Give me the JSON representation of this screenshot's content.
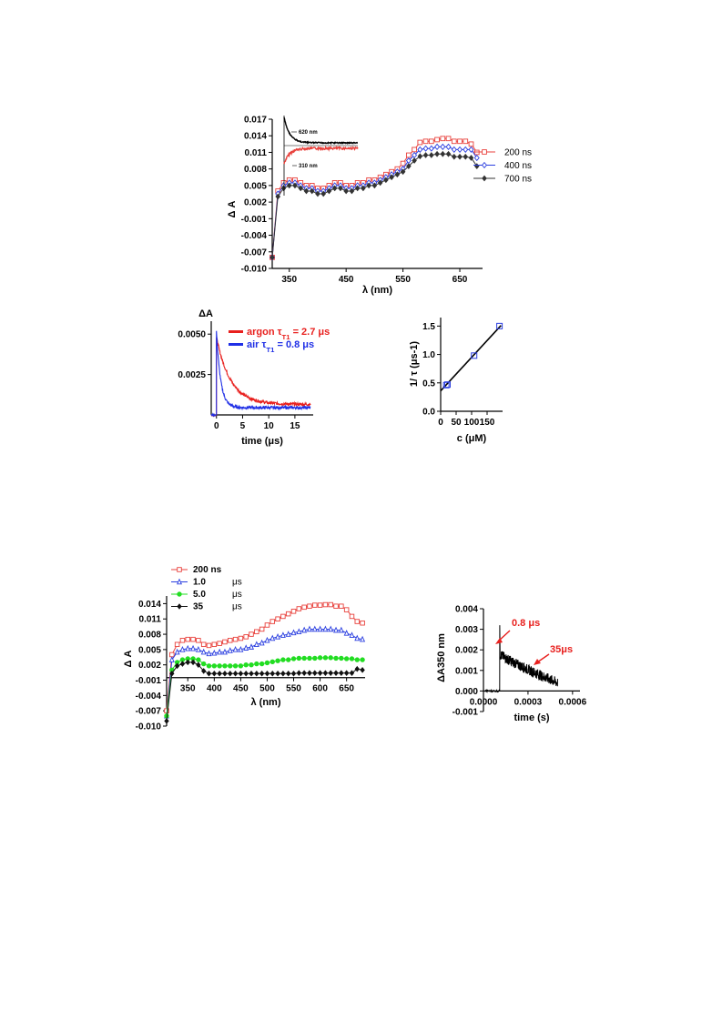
{
  "chart_data": [
    {
      "id": "c1",
      "type": "line",
      "xlabel": "λ (nm)",
      "ylabel": "Δ A",
      "xlim": [
        320,
        690
      ],
      "ylim": [
        -0.01,
        0.017
      ],
      "xticks": [
        350,
        450,
        550,
        650
      ],
      "yticks": [
        -0.01,
        -0.007,
        -0.004,
        -0.001,
        0.002,
        0.005,
        0.008,
        0.011,
        0.014,
        0.017
      ],
      "ytick_labels": [
        "-0.010",
        "-0.007",
        "-0.004",
        "-0.001",
        "0.002",
        "0.005",
        "0.008",
        "0.011",
        "0.014",
        "0.017"
      ],
      "legend_position": "right",
      "x": [
        320,
        330,
        340,
        350,
        360,
        370,
        380,
        390,
        400,
        410,
        420,
        430,
        440,
        450,
        460,
        470,
        480,
        490,
        500,
        510,
        520,
        530,
        540,
        550,
        560,
        570,
        580,
        590,
        600,
        610,
        620,
        630,
        640,
        650,
        660,
        670,
        680
      ],
      "series": [
        {
          "name": "200 ns",
          "color": "#e8413c",
          "marker": "square",
          "values": [
            -0.008,
            0.004,
            0.0055,
            0.006,
            0.006,
            0.0055,
            0.005,
            0.005,
            0.0045,
            0.0045,
            0.005,
            0.0055,
            0.0055,
            0.005,
            0.005,
            0.0055,
            0.0055,
            0.006,
            0.006,
            0.0065,
            0.007,
            0.0075,
            0.008,
            0.009,
            0.0105,
            0.0115,
            0.0128,
            0.013,
            0.013,
            0.0133,
            0.0135,
            0.0135,
            0.013,
            0.013,
            0.013,
            0.0125,
            0.011
          ]
        },
        {
          "name": "400 ns",
          "color": "#2b3fe0",
          "marker": "star",
          "values": [
            -0.008,
            0.0035,
            0.005,
            0.0055,
            0.0055,
            0.005,
            0.0045,
            0.0045,
            0.004,
            0.004,
            0.0045,
            0.005,
            0.005,
            0.0045,
            0.0045,
            0.005,
            0.005,
            0.0055,
            0.0055,
            0.006,
            0.0065,
            0.007,
            0.0075,
            0.008,
            0.0095,
            0.0105,
            0.0115,
            0.0117,
            0.0117,
            0.012,
            0.012,
            0.012,
            0.0115,
            0.0115,
            0.0115,
            0.0115,
            0.01
          ]
        },
        {
          "name": "700 ns",
          "color": "#333333",
          "marker": "diamond",
          "values": [
            -0.008,
            0.003,
            0.0045,
            0.005,
            0.005,
            0.0045,
            0.004,
            0.004,
            0.0035,
            0.0035,
            0.004,
            0.0045,
            0.0045,
            0.004,
            0.004,
            0.0045,
            0.0045,
            0.005,
            0.005,
            0.0055,
            0.006,
            0.0065,
            0.007,
            0.0075,
            0.0085,
            0.0095,
            0.0103,
            0.0105,
            0.0105,
            0.0107,
            0.0107,
            0.0107,
            0.0102,
            0.0102,
            0.0102,
            0.01,
            0.0085
          ]
        }
      ],
      "inset": {
        "traces": [
          {
            "label": "620 nm",
            "color": "#000000",
            "shape": "decay"
          },
          {
            "label": "310 nm",
            "color": "#e8413c",
            "shape": "rise"
          }
        ]
      }
    },
    {
      "id": "c2",
      "type": "line",
      "xlabel": "time (μs)",
      "ylabel": "ΔA",
      "xlim": [
        -1,
        18.5
      ],
      "ylim": [
        0,
        0.0058
      ],
      "xticks": [
        0,
        5,
        10,
        15
      ],
      "yticks": [
        0.0025,
        0.005
      ],
      "ytick_labels": [
        "0.0025",
        "0.0050"
      ],
      "legend_position": "top-right",
      "series": [
        {
          "name": "argon τT1 = 2.7 μs",
          "name_parts": [
            "argon  τ",
            "T1",
            " = 2.7 μs"
          ],
          "color": "#e8201e",
          "tau": 2.7,
          "peak": 0.0048,
          "offset": 0.00065
        },
        {
          "name": "air τT1 = 0.8 μs",
          "name_parts": [
            "air  τ",
            "T1",
            " = 0.8 μs"
          ],
          "color": "#1f2fe6",
          "tau": 0.8,
          "peak": 0.0052,
          "offset": 0.00045
        }
      ]
    },
    {
      "id": "c3",
      "type": "scatter",
      "xlabel": "c (μM)",
      "ylabel": "1/ τ  (μs-1)",
      "xlim": [
        0,
        200
      ],
      "ylim": [
        0,
        1.65
      ],
      "xticks": [
        0,
        50,
        100,
        150
      ],
      "yticks": [
        0.0,
        0.5,
        1.0,
        1.5
      ],
      "ytick_labels": [
        "0.0",
        "0.5",
        "1.0",
        "1.5"
      ],
      "points": [
        {
          "x": 18,
          "y": 0.46
        },
        {
          "x": 22,
          "y": 0.47
        },
        {
          "x": 108,
          "y": 0.98
        },
        {
          "x": 190,
          "y": 1.5
        }
      ],
      "fit": {
        "intercept": 0.36,
        "slope": 0.0059
      }
    },
    {
      "id": "c4",
      "type": "line",
      "xlabel": "λ (nm)",
      "ylabel": "Δ A",
      "xlim": [
        310,
        685
      ],
      "ylim": [
        -0.01,
        0.0155
      ],
      "xticks": [
        350,
        400,
        450,
        500,
        550,
        600,
        650
      ],
      "yticks": [
        -0.01,
        -0.007,
        -0.004,
        -0.001,
        0.002,
        0.005,
        0.008,
        0.011,
        0.014
      ],
      "ytick_labels": [
        "-0.010",
        "-0.007",
        "-0.004",
        "-0.001",
        "0.002",
        "0.005",
        "0.008",
        "0.011",
        "0.014"
      ],
      "legend_position": "top-left",
      "x": [
        310,
        320,
        330,
        340,
        350,
        360,
        370,
        380,
        390,
        400,
        410,
        420,
        430,
        440,
        450,
        460,
        470,
        480,
        490,
        500,
        510,
        520,
        530,
        540,
        550,
        560,
        570,
        580,
        590,
        600,
        610,
        620,
        630,
        640,
        650,
        660,
        670,
        680
      ],
      "series": [
        {
          "name": "200 ns",
          "color": "#e8413c",
          "marker": "square",
          "values": [
            -0.007,
            0.004,
            0.006,
            0.0068,
            0.007,
            0.007,
            0.0068,
            0.006,
            0.0058,
            0.006,
            0.0062,
            0.0065,
            0.0068,
            0.007,
            0.0072,
            0.0075,
            0.008,
            0.0085,
            0.009,
            0.0098,
            0.0105,
            0.011,
            0.0115,
            0.012,
            0.0125,
            0.013,
            0.0133,
            0.0135,
            0.0137,
            0.0137,
            0.0138,
            0.0138,
            0.0135,
            0.0135,
            0.0128,
            0.0115,
            0.0105,
            0.0102
          ]
        },
        {
          "name": "1.0 μs",
          "name_parts": [
            "1.0  ",
            "μ",
            "s"
          ],
          "color": "#2b3fe0",
          "marker": "triangle",
          "values": [
            -0.008,
            0.003,
            0.0045,
            0.005,
            0.0052,
            0.0052,
            0.005,
            0.0045,
            0.0042,
            0.0043,
            0.0045,
            0.0045,
            0.0048,
            0.005,
            0.005,
            0.0053,
            0.0055,
            0.006,
            0.0063,
            0.0068,
            0.0072,
            0.0075,
            0.0078,
            0.008,
            0.0083,
            0.0085,
            0.0088,
            0.009,
            0.009,
            0.009,
            0.009,
            0.009,
            0.0088,
            0.0088,
            0.0082,
            0.0078,
            0.0072,
            0.007
          ]
        },
        {
          "name": "5.0 μs",
          "name_parts": [
            "5.0  ",
            "μ",
            "s"
          ],
          "color": "#22dd22",
          "marker": "circle",
          "values": [
            -0.008,
            0.001,
            0.0025,
            0.003,
            0.0032,
            0.0032,
            0.003,
            0.0022,
            0.0018,
            0.0018,
            0.0018,
            0.0018,
            0.0018,
            0.0018,
            0.0018,
            0.002,
            0.002,
            0.0022,
            0.0022,
            0.0024,
            0.0026,
            0.0028,
            0.003,
            0.003,
            0.0032,
            0.0033,
            0.0033,
            0.0033,
            0.0033,
            0.0034,
            0.0034,
            0.0034,
            0.0033,
            0.0033,
            0.0032,
            0.0032,
            0.003,
            0.003
          ]
        },
        {
          "name": "35 μs",
          "name_parts": [
            "35     ",
            "μ",
            "s"
          ],
          "color": "#111111",
          "marker": "diamond",
          "values": [
            -0.009,
            0.0003,
            0.0018,
            0.0022,
            0.0025,
            0.0025,
            0.002,
            0.0008,
            0.0003,
            0.0003,
            0.0003,
            0.0003,
            0.0003,
            0.0003,
            0.0003,
            0.0003,
            0.0003,
            0.0003,
            0.0003,
            0.0003,
            0.0003,
            0.0003,
            0.0003,
            0.0003,
            0.0003,
            0.0004,
            0.0004,
            0.0004,
            0.0004,
            0.0004,
            0.0004,
            0.0004,
            0.0004,
            0.0004,
            0.0004,
            0.0004,
            0.0012,
            0.001
          ]
        }
      ]
    },
    {
      "id": "c5",
      "type": "line",
      "xlabel": "time (s)",
      "ylabel": "ΔA350 nm",
      "xlim": [
        0,
        0.00065
      ],
      "ylim": [
        -0.001,
        0.004
      ],
      "xticks": [
        0,
        0.0003,
        0.0006
      ],
      "xtick_labels": [
        "0.0000",
        "0.0003",
        "0.0006"
      ],
      "yticks": [
        -0.001,
        0.0,
        0.001,
        0.002,
        0.003,
        0.004
      ],
      "ytick_labels": [
        "-0.001",
        "0.000",
        "0.001",
        "0.002",
        "0.003",
        "0.004"
      ],
      "trace": {
        "t_start": 1e-05,
        "t_jump": 0.00011,
        "t_end": 0.0005,
        "spike": 0.0032,
        "plateau": 0.0018,
        "end": 0.0004
      },
      "annotations": [
        {
          "text": "0.8 μs",
          "color": "#e8201e",
          "x": 0.00011,
          "y": 0.0017
        },
        {
          "text": "35μs",
          "color": "#e8201e",
          "x": 0.00032,
          "y": 0.0009
        }
      ]
    }
  ]
}
